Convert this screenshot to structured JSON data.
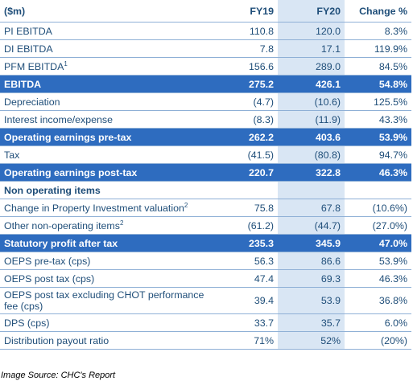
{
  "table": {
    "headers": [
      "($m)",
      "FY19",
      "FY20",
      "Change %"
    ],
    "rows": [
      {
        "label": "PI EBITDA",
        "sup": "",
        "fy19": "110.8",
        "fy20": "120.0",
        "change": "8.3%",
        "style": "normal"
      },
      {
        "label": "DI EBITDA",
        "sup": "",
        "fy19": "7.8",
        "fy20": "17.1",
        "change": "119.9%",
        "style": "normal"
      },
      {
        "label": "PFM EBITDA",
        "sup": "1",
        "fy19": "156.6",
        "fy20": "289.0",
        "change": "84.5%",
        "style": "normal"
      },
      {
        "label": "EBITDA",
        "sup": "",
        "fy19": "275.2",
        "fy20": "426.1",
        "change": "54.8%",
        "style": "highlight"
      },
      {
        "label": "Depreciation",
        "sup": "",
        "fy19": "(4.7)",
        "fy20": "(10.6)",
        "change": "125.5%",
        "style": "normal"
      },
      {
        "label": "Interest income/expense",
        "sup": "",
        "fy19": "(8.3)",
        "fy20": "(11.9)",
        "change": "43.3%",
        "style": "normal"
      },
      {
        "label": "Operating earnings pre-tax",
        "sup": "",
        "fy19": "262.2",
        "fy20": "403.6",
        "change": "53.9%",
        "style": "highlight"
      },
      {
        "label": "Tax",
        "sup": "",
        "fy19": "(41.5)",
        "fy20": "(80.8)",
        "change": "94.7%",
        "style": "normal"
      },
      {
        "label": "Operating earnings post-tax",
        "sup": "",
        "fy19": "220.7",
        "fy20": "322.8",
        "change": "46.3%",
        "style": "highlight"
      },
      {
        "label": "Non operating items",
        "sup": "",
        "fy19": "",
        "fy20": "",
        "change": "",
        "style": "section"
      },
      {
        "label": "Change in Property Investment valuation",
        "sup": "2",
        "fy19": "75.8",
        "fy20": "67.8",
        "change": "(10.6%)",
        "style": "normal"
      },
      {
        "label": "Other non-operating items",
        "sup": "2",
        "fy19": "(61.2)",
        "fy20": "(44.7)",
        "change": "(27.0%)",
        "style": "normal"
      },
      {
        "label": "Statutory profit after tax",
        "sup": "",
        "fy19": "235.3",
        "fy20": "345.9",
        "change": "47.0%",
        "style": "highlight"
      },
      {
        "label": "OEPS pre-tax (cps)",
        "sup": "",
        "fy19": "56.3",
        "fy20": "86.6",
        "change": "53.9%",
        "style": "normal"
      },
      {
        "label": "OEPS post tax (cps)",
        "sup": "",
        "fy19": "47.4",
        "fy20": "69.3",
        "change": "46.3%",
        "style": "normal"
      },
      {
        "label": "OEPS post tax excluding CHOT performance fee (cps)",
        "sup": "",
        "fy19": "39.4",
        "fy20": "53.9",
        "change": "36.8%",
        "style": "tall"
      },
      {
        "label": "DPS (cps)",
        "sup": "",
        "fy19": "33.7",
        "fy20": "35.7",
        "change": "6.0%",
        "style": "normal"
      },
      {
        "label": "Distribution payout ratio",
        "sup": "",
        "fy19": "71%",
        "fy20": "52%",
        "change": "(20%)",
        "style": "normal"
      }
    ]
  },
  "caption": "Image Source: CHC's Report",
  "colors": {
    "highlight_row": "#2e6cbf",
    "fy20_column": "#d9e6f4",
    "text": "#1f4e79",
    "rule": "#8fb0d6"
  }
}
